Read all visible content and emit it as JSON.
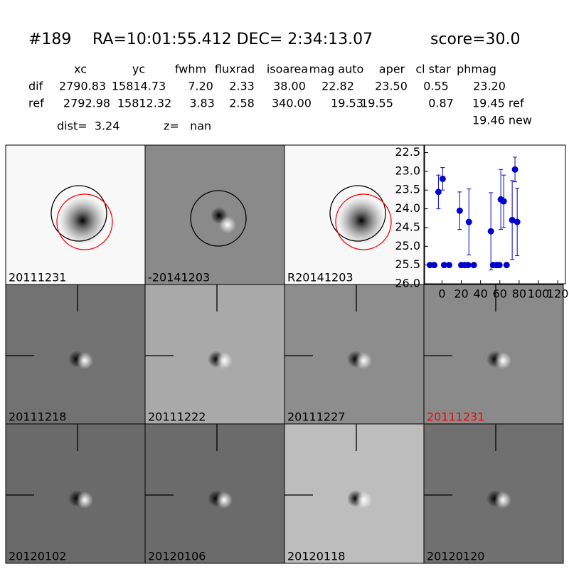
{
  "header": {
    "id": "#189",
    "coords": "RA=10:01:55.412 DEC= 2:34:13.07",
    "score": "score=30.0"
  },
  "table": {
    "columns": [
      "xc",
      "yc",
      "fwhm",
      "fluxrad",
      "isoarea",
      "mag auto",
      "aper",
      "cl star",
      "phmag"
    ],
    "rows": [
      [
        "dif",
        "2790.83",
        "15814.73",
        "7.20",
        "2.33",
        "38.00",
        "22.82",
        "23.50",
        "0.55",
        "23.20"
      ],
      [
        "ref",
        "2792.98",
        "15812.32",
        "3.83",
        "2.58",
        "340.00",
        "19.53",
        "19.55",
        "0.87",
        "19.45 ref"
      ]
    ],
    "note": "19.46 new"
  },
  "dist": "dist=  3.24",
  "z": "z=   nan",
  "panels": [
    {
      "label": "20111231"
    },
    {
      "label": "-20141203"
    },
    {
      "label": "R20141203"
    },
    {
      "label": "20111218"
    },
    {
      "label": "20111222"
    },
    {
      "label": "20111227"
    },
    {
      "label": "20111231",
      "color": "#ff0000"
    },
    {
      "label": "20120102"
    },
    {
      "label": "20120106"
    },
    {
      "label": "20120118"
    },
    {
      "label": "20120120"
    }
  ],
  "chart_data": {
    "type": "errorbar",
    "color": "#0000cc",
    "x": [
      -12.5,
      -8,
      -3.7,
      0.7,
      2.2,
      7.4,
      18.4,
      20,
      23.5,
      27,
      27.9,
      33,
      50.7,
      53,
      56.6,
      59.6,
      61,
      64,
      67,
      72.8,
      75.7,
      78
    ],
    "values": [
      25.5,
      25.5,
      23.55,
      23.2,
      25.5,
      25.5,
      24.05,
      25.5,
      25.5,
      25.5,
      24.35,
      25.5,
      24.6,
      25.5,
      25.5,
      25.5,
      23.75,
      23.8,
      25.5,
      24.3,
      22.95,
      24.35
    ],
    "errors": [
      null,
      null,
      0.45,
      0.3,
      null,
      null,
      0.5,
      null,
      null,
      null,
      0.88,
      null,
      1.03,
      null,
      null,
      null,
      0.8,
      0.7,
      null,
      1.05,
      0.33,
      0.9
    ],
    "xlim": [
      -18,
      128
    ],
    "ylim": [
      22.3,
      26.0
    ],
    "y_inverted": true,
    "xticks": [
      0,
      20,
      40,
      60,
      80,
      100,
      120
    ],
    "yticks": [
      22.5,
      {
        "value": 23,
        "label": "23.0"
      },
      23.5,
      {
        "value": 24,
        "label": "24.0"
      },
      24.5,
      {
        "value": 25,
        "label": "25.0"
      },
      25.5,
      {
        "value": 26,
        "label": "26.0"
      }
    ]
  }
}
